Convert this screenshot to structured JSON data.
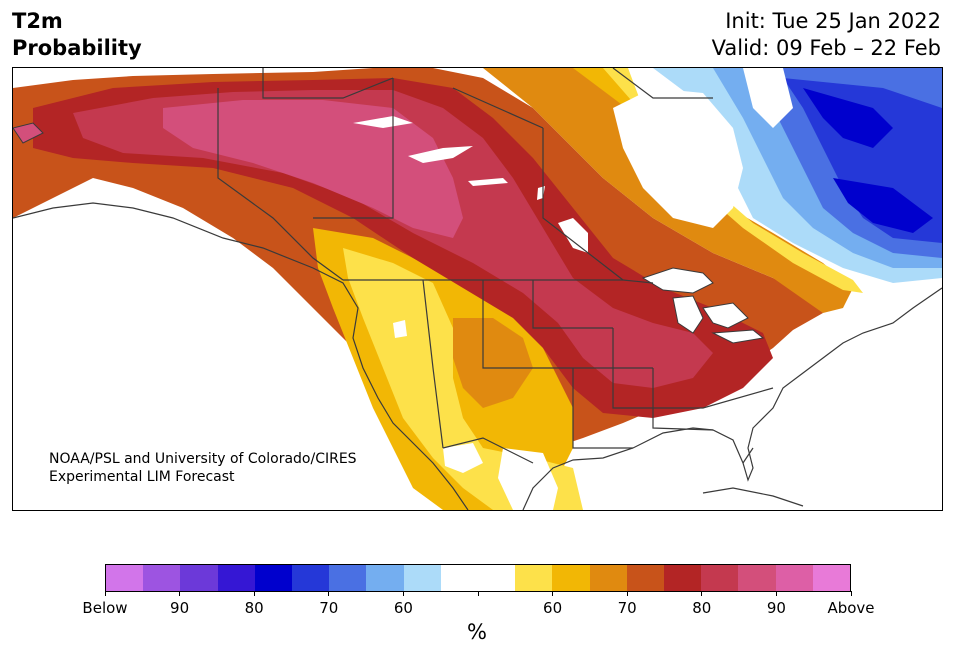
{
  "title": {
    "left_line1": "T2m",
    "left_line2": "Probability",
    "init": "Init: Tue 25 Jan 2022",
    "valid": "Valid: 09 Feb – 22 Feb"
  },
  "credit": {
    "line1": "NOAA/PSL and University of Colorado/CIRES",
    "line2": "Experimental LIM Forecast"
  },
  "colorbar": {
    "unit": "%",
    "tick_labels": [
      "Below",
      "90",
      "80",
      "70",
      "60",
      "",
      "60",
      "70",
      "80",
      "90",
      "Above"
    ],
    "colors": [
      "#d275ea",
      "#9d54e1",
      "#6c39d9",
      "#3517d4",
      "#0000cd",
      "#2538d8",
      "#4a70e3",
      "#74aef0",
      "#acdbf9",
      "#ffffff",
      "#ffffff",
      "#fde14a",
      "#f2b705",
      "#e08a10",
      "#c8531a",
      "#b32525",
      "#c4394f",
      "#d34f7b",
      "#dd5fa6",
      "#e87ad8"
    ]
  },
  "map": {
    "region": "North America",
    "colors": {
      "white": "#ffffff",
      "above_50": "#fde14a",
      "above_60": "#f2b705",
      "above_70": "#e08a10",
      "above_75": "#c8531a",
      "above_80": "#b32525",
      "above_85": "#c4394f",
      "above_90": "#d34f7b",
      "below_55": "#acdbf9",
      "below_60": "#74aef0",
      "below_70": "#4a70e3",
      "below_75": "#2538d8",
      "below_80": "#0000cd",
      "coast": "#3a3a3a"
    }
  }
}
